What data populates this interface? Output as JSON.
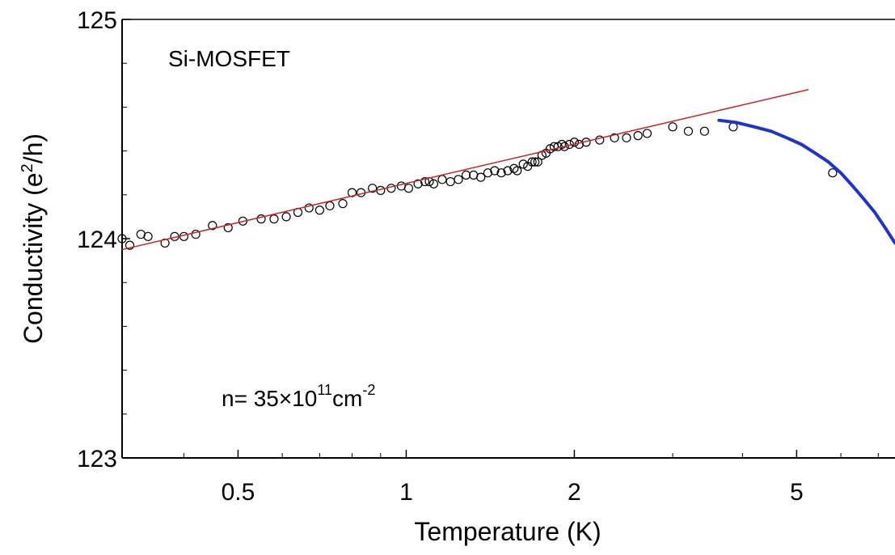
{
  "chart_data": {
    "type": "scatter",
    "title": "",
    "xlabel": "Temperature (K)",
    "ylabel_main": "Conductivity (e",
    "ylabel_sup": "2",
    "ylabel_end": "/h)",
    "x_scale": "log",
    "xlim": [
      0.31,
      7.5
    ],
    "ylim": [
      123,
      125
    ],
    "x_ticks": [
      {
        "value": 0.5,
        "label": "0.5"
      },
      {
        "value": 1,
        "label": "1"
      },
      {
        "value": 2,
        "label": "2"
      },
      {
        "value": 5,
        "label": "5"
      }
    ],
    "y_ticks": [
      {
        "value": 123,
        "label": "123"
      },
      {
        "value": 124,
        "label": "124"
      },
      {
        "value": 125,
        "label": "125"
      }
    ],
    "grid": false,
    "annotations": {
      "sample": "Si-MOSFET",
      "density_prefix": "n= 35",
      "density_times": "×10",
      "density_exp": "11",
      "density_unit": "cm",
      "density_unit_exp": "-2"
    },
    "series": [
      {
        "kind": "points",
        "marker": "open-circle",
        "color": "#000000",
        "x": [
          0.31,
          0.32,
          0.335,
          0.345,
          0.37,
          0.385,
          0.4,
          0.42,
          0.45,
          0.48,
          0.51,
          0.55,
          0.58,
          0.61,
          0.64,
          0.67,
          0.7,
          0.73,
          0.77,
          0.8,
          0.83,
          0.87,
          0.9,
          0.94,
          0.98,
          1.01,
          1.05,
          1.08,
          1.1,
          1.12,
          1.16,
          1.2,
          1.24,
          1.28,
          1.32,
          1.36,
          1.4,
          1.44,
          1.48,
          1.52,
          1.56,
          1.58,
          1.62,
          1.65,
          1.68,
          1.7,
          1.72,
          1.75,
          1.78,
          1.81,
          1.84,
          1.87,
          1.9,
          1.92,
          1.96,
          2.0,
          2.04,
          2.1,
          2.22,
          2.36,
          2.48,
          2.6,
          2.7,
          3.0,
          3.2,
          3.42,
          3.85,
          5.8
        ],
        "y": [
          124.0,
          123.97,
          124.02,
          124.01,
          123.98,
          124.01,
          124.01,
          124.02,
          124.06,
          124.05,
          124.08,
          124.09,
          124.09,
          124.1,
          124.12,
          124.14,
          124.13,
          124.15,
          124.16,
          124.21,
          124.21,
          124.23,
          124.22,
          124.23,
          124.24,
          124.23,
          124.25,
          124.26,
          124.26,
          124.25,
          124.27,
          124.26,
          124.27,
          124.29,
          124.29,
          124.28,
          124.3,
          124.31,
          124.3,
          124.31,
          124.32,
          124.31,
          124.34,
          124.33,
          124.35,
          124.35,
          124.35,
          124.38,
          124.39,
          124.41,
          124.42,
          124.42,
          124.43,
          124.42,
          124.43,
          124.44,
          124.43,
          124.44,
          124.45,
          124.46,
          124.46,
          124.47,
          124.48,
          124.51,
          124.49,
          124.49,
          124.51,
          124.3
        ]
      },
      {
        "kind": "line",
        "color": "#c0282a",
        "x": [
          0.31,
          5.25
        ],
        "y": [
          123.95,
          124.68
        ]
      },
      {
        "kind": "curve",
        "color": "#2233cc",
        "x": [
          3.63,
          3.9,
          4.2,
          4.5,
          4.8,
          5.1,
          5.4,
          5.7,
          6.0,
          6.3,
          6.6,
          6.9,
          7.2,
          7.5
        ],
        "y": [
          124.54,
          124.53,
          124.51,
          124.49,
          124.46,
          124.43,
          124.39,
          124.35,
          124.3,
          124.24,
          124.18,
          124.12,
          124.05,
          123.98
        ]
      }
    ]
  }
}
